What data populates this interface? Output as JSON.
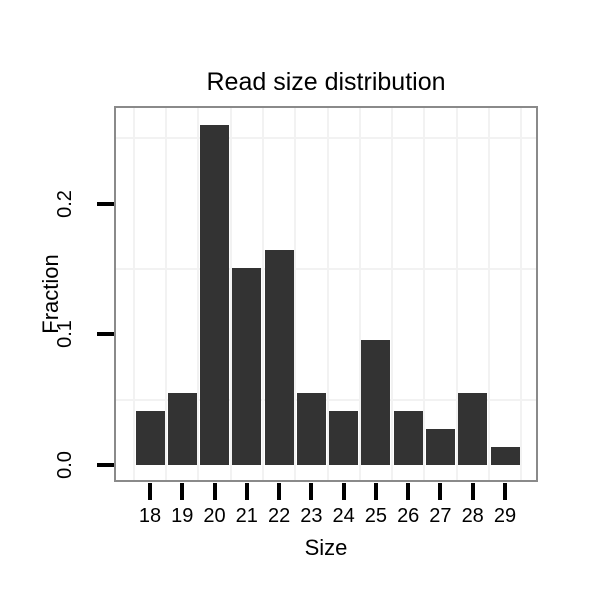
{
  "chart_data": {
    "type": "bar",
    "title": "Read size distribution",
    "xlabel": "Size",
    "ylabel": "Fraction",
    "categories": [
      "18",
      "19",
      "20",
      "21",
      "22",
      "23",
      "24",
      "25",
      "26",
      "27",
      "28",
      "29"
    ],
    "values": [
      0.0411,
      0.0548,
      0.2603,
      0.1507,
      0.1644,
      0.0548,
      0.0411,
      0.0959,
      0.0411,
      0.0274,
      0.0548,
      0.0137
    ],
    "y_tick_labels": [
      "0.0",
      "0.1",
      "0.2"
    ],
    "y_tick_values": [
      0.0,
      0.1,
      0.2
    ],
    "y_minor_gridlines": [
      0.05,
      0.15,
      0.25
    ],
    "ylim": [
      -0.012,
      0.273
    ],
    "grid": "faint vertical lines between categories, faint horizontal lines at 0.05 steps",
    "legend_position": "none",
    "colors": {
      "bar": "#333333",
      "panel_border": "#8a8a8a",
      "gridline": "#f2f2f2",
      "tick": "#000000",
      "text": "#000000",
      "background": "#ffffff"
    }
  }
}
